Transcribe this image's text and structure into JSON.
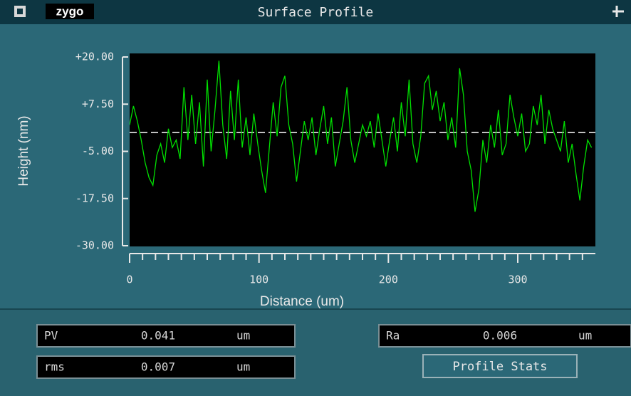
{
  "title_bar": {
    "logo": "zygo",
    "title": "Surface Profile"
  },
  "chart_data": {
    "type": "line",
    "xlabel": "Distance (um)",
    "ylabel": "Height (nm)",
    "xlim": [
      0,
      360
    ],
    "ylim": [
      -30,
      20
    ],
    "xticks": [
      0,
      100,
      200,
      300
    ],
    "xminorticks": [
      10,
      20,
      30,
      40,
      50,
      60,
      70,
      80,
      90,
      110,
      120,
      130,
      140,
      150,
      160,
      170,
      180,
      190,
      210,
      220,
      230,
      240,
      250,
      260,
      270,
      280,
      290,
      310,
      320,
      330,
      340,
      350
    ],
    "yticks": [
      {
        "value": 20,
        "label": "+20.00"
      },
      {
        "value": 7.5,
        "label": "+7.50"
      },
      {
        "value": -5,
        "label": "-5.00"
      },
      {
        "value": -17.5,
        "label": "-17.50"
      },
      {
        "value": -30,
        "label": "-30.00"
      }
    ],
    "reference_line": 0,
    "series": [
      {
        "color": "#00e000",
        "x": [
          0,
          3,
          6,
          9,
          12,
          15,
          18,
          21,
          24,
          27,
          30,
          33,
          36,
          39,
          42,
          45,
          48,
          51,
          54,
          57,
          60,
          63,
          66,
          69,
          72,
          75,
          78,
          81,
          84,
          87,
          90,
          93,
          96,
          99,
          102,
          105,
          108,
          111,
          114,
          117,
          120,
          123,
          126,
          129,
          132,
          135,
          138,
          141,
          144,
          147,
          150,
          153,
          156,
          159,
          162,
          165,
          168,
          171,
          174,
          177,
          180,
          183,
          186,
          189,
          192,
          195,
          198,
          201,
          204,
          207,
          210,
          213,
          216,
          219,
          222,
          225,
          228,
          231,
          234,
          237,
          240,
          243,
          246,
          249,
          252,
          255,
          258,
          261,
          264,
          267,
          270,
          273,
          276,
          279,
          282,
          285,
          288,
          291,
          294,
          297,
          300,
          303,
          306,
          309,
          312,
          315,
          318,
          321,
          324,
          327,
          330,
          333,
          336,
          339,
          342,
          345,
          348,
          351,
          354,
          357
        ],
        "values": [
          2,
          7,
          3,
          -2,
          -8,
          -12,
          -14,
          -6,
          -3,
          -8,
          1,
          -4,
          -2,
          -7,
          12,
          -2,
          10,
          -3,
          8,
          -9,
          14,
          -5,
          6,
          19,
          2,
          -7,
          11,
          -2,
          14,
          -4,
          4,
          -6,
          5,
          -3,
          -10,
          -16,
          -4,
          8,
          -1,
          12,
          15,
          2,
          -3,
          -13,
          -5,
          3,
          -2,
          4,
          -6,
          1,
          7,
          -3,
          4,
          -9,
          -3,
          3,
          12,
          -2,
          -8,
          -3,
          2,
          -1,
          3,
          -4,
          5,
          -2,
          -9,
          -2,
          4,
          -5,
          8,
          -1,
          14,
          -3,
          -8,
          -1,
          13,
          15,
          6,
          11,
          3,
          8,
          -2,
          4,
          -4,
          17,
          10,
          -5,
          -10,
          -21,
          -15,
          -2,
          -8,
          2,
          -4,
          6,
          -6,
          -3,
          10,
          4,
          -1,
          5,
          -5,
          -3,
          7,
          2,
          10,
          -3,
          6,
          1,
          -2,
          -5,
          3,
          -8,
          -3,
          -11,
          -18,
          -9,
          -2,
          -4
        ]
      }
    ]
  },
  "stats": [
    {
      "label": "PV",
      "value": 0.041,
      "unit": "um"
    },
    {
      "label": "rms",
      "value": 0.007,
      "unit": "um"
    },
    {
      "label": "Ra",
      "value": 0.006,
      "unit": "um"
    }
  ],
  "button": "Profile Stats"
}
